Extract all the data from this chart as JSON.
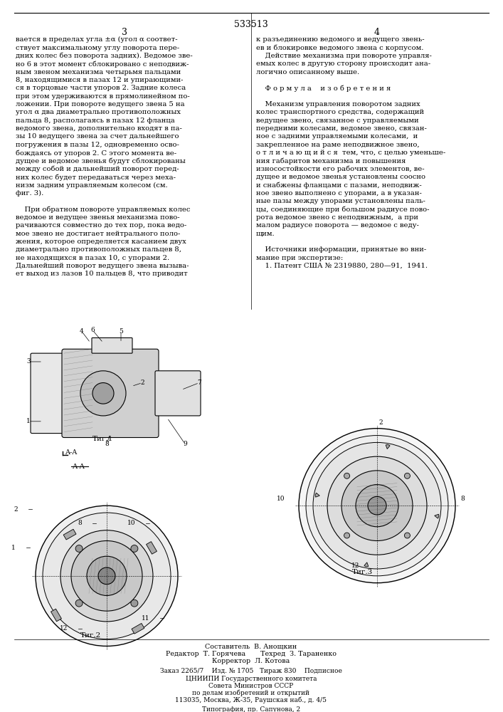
{
  "title_number": "533513",
  "page_numbers": [
    "3",
    "4"
  ],
  "background_color": "#ffffff",
  "text_color": "#000000",
  "left_column_text": [
    "вается в пределах угла ±α (угол α соответ-",
    "ствует максимальному углу поворота пере-",
    "дних колес без поворота задних). Ведомое зве-",
    "но 6 в этот момент сблокировано с неподвиж-",
    "ным звеном механизма четырьмя пальцами",
    "8, находящимися в пазах 12 и упирающими-",
    "ся в торцовые части упоров 2. Задние колеса",
    "при этом удерживаются в прямолинейном по-",
    "ложении. При повороте ведущего звена 5 на",
    "угол α два диаметрально противоположных",
    "пальца 8, располагаясь в пазах 12 фланца",
    "ведомого звена, дополнительно входят в па-",
    "зы 10 ведущего звена за счет дальнейшего",
    "погружения в пазы 12, одновременно осво-",
    "бождаясь от упоров 2. С этого момента ве-",
    "дущее и ведомое звенья будут сблокированы",
    "между собой и дальнейший поворот перед-",
    "них колес будет передаваться через меха-",
    "низм задним управляемым колесом (см.",
    "фиг. 3).",
    "",
    "    При обратном повороте управляемых колес",
    "ведомое и ведущее звенья механизма пово-",
    "рачиваются совместно до тех пор, пока ведо-",
    "мое звено не достигает нейтрального поло-",
    "жения, которое определяется касанием двух",
    "диаметрально противоположных пальцев 8,",
    "не находящихся в пазах 10, с упорами 2.",
    "Дальнейший поворот ведущего звена вызыва-",
    "ет выход из лазов 10 пальцев 8, что приводит"
  ],
  "right_column_text": [
    "к разъединению ведомого и ведущего звень-",
    "ев и блокировке ведомого звена с корпусом.",
    "    Действие механизма при повороте управля-",
    "емых колес в другую сторону происходит ана-",
    "логично описанному выше.",
    "",
    "    Ф о р м у л а    и з о б р е т е н и я",
    "",
    "    Механизм управления поворотом задних",
    "колес транспортного средства, содержащий",
    "ведущее звено, связанное с управляемыми",
    "передними колесами, ведомое звено, связан-",
    "ное с задними управляемыми колесами,  и",
    "закрепленное на раме неподвижное звено,",
    "о т л и ч а ю щ и й с я  тем, что, с целью уменьше-",
    "ния габаритов механизма и повышения",
    "износостойкости его рабочих элементов, ве-",
    "дущее и ведомое звенья установлены соосно",
    "и снабжены фланцами с пазами, неподвиж-",
    "ное звено выполнено с упорами, а в указан-",
    "ные пазы между упорами установлены паль-",
    "цы, соединяющие при большом радиусе пово-",
    "рота ведомое звено с неподвижным,  а при",
    "малом радиусе поворота — ведомое с веду-",
    "щим.",
    "",
    "    Источники информации, принятые во вни-",
    "мание при экспертизе:",
    "    1. Патент США № 2319880, 280—91,  1941."
  ],
  "fig1_label": "Τиг.1",
  "fig2_label": "Τиг.2",
  "fig3_label": "Τиг.3",
  "section_label": "A-A",
  "bottom_text": [
    "Составитель  В. Анощкин",
    "Редактор  Т. Горячева       Техред  З. Тараненко",
    "Корректор  Л. Котова",
    "",
    "Заказ 2265/7    Изд. № 1705   Тираж 830    Подписное",
    "ЦНИИПИ Государственного комитета",
    "Совета Министров СССР",
    "по делам изобретений и открытий",
    "113035, Москва, Ж-35, Раушская наб., д. 4/5",
    "",
    "Типография, пр. Сапунова, 2"
  ]
}
